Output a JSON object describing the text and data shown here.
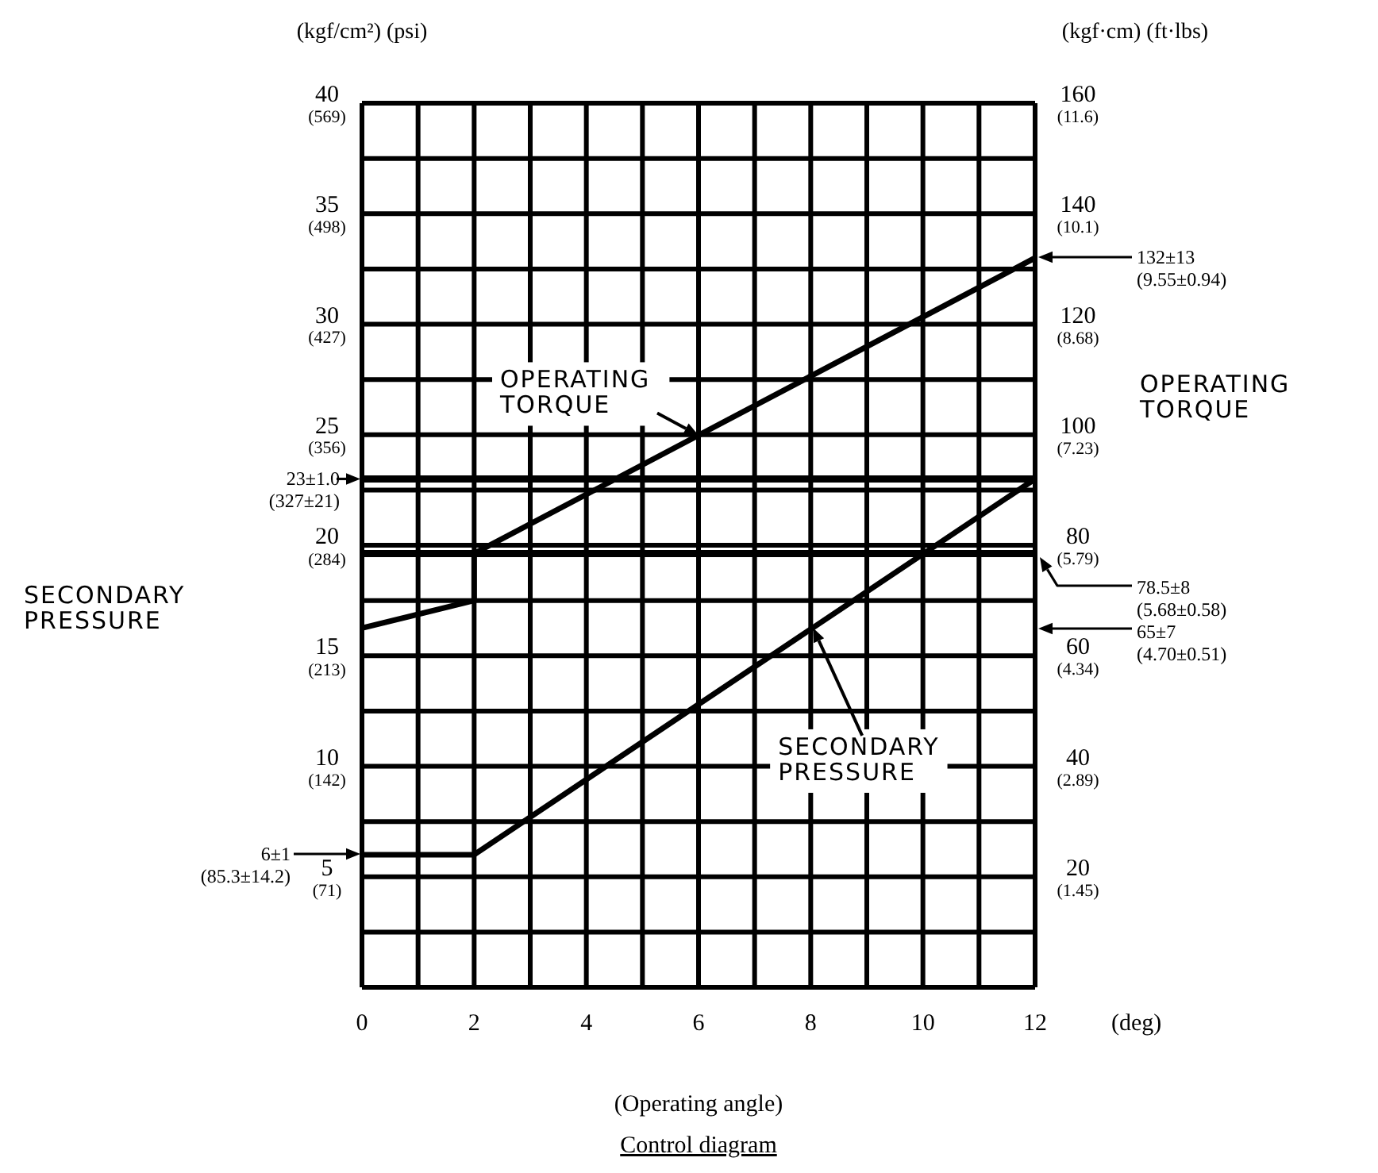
{
  "chart_data": {
    "type": "line",
    "title": "Control diagram",
    "xlabel": "(Operating angle)",
    "ylabel": "(kgf/cm²) (psi)",
    "y2label": "(kgf·cm) (ft·lbs)",
    "xlim": [
      0,
      12
    ],
    "xticks": [
      0,
      {
        "value": 1,
        "label": null
      },
      2,
      {
        "value": 3,
        "label": null
      },
      4,
      {
        "value": 5,
        "label": null
      },
      6,
      {
        "value": 7,
        "label": null
      },
      8,
      {
        "value": 9,
        "label": null
      },
      10,
      {
        "value": 11,
        "label": null
      },
      12
    ],
    "ylim": [
      0,
      40
    ],
    "yticks": [
      {
        "value": 2.5,
        "label": null
      },
      5,
      {
        "value": 7.5,
        "label": null
      },
      10,
      {
        "value": 12.5,
        "label": null
      },
      15,
      {
        "value": 17.5,
        "label": null
      },
      20,
      {
        "value": 22.5,
        "label": null
      },
      25,
      {
        "value": 27.5,
        "label": null
      },
      30,
      {
        "value": 32.5,
        "label": null
      },
      35,
      {
        "value": 37.5,
        "label": null
      },
      40
    ],
    "y3lim": [
      0,
      569
    ],
    "y3ticks": [
      {
        "value": 71,
        "label": "(71)"
      },
      {
        "value": 142,
        "label": "(142)"
      },
      {
        "value": 213,
        "label": "(213)"
      },
      {
        "value": 284,
        "label": "(284)"
      },
      {
        "value": 356,
        "label": "(356)"
      },
      {
        "value": 427,
        "label": "(427)"
      },
      {
        "value": 498,
        "label": "(498)"
      },
      {
        "value": 569,
        "label": "(569)"
      }
    ],
    "y2lim": [
      0,
      160
    ],
    "y2ticks": [
      20,
      40,
      60,
      80,
      100,
      120,
      140,
      160
    ],
    "series": [
      {
        "name": "OPERATING TORQUE",
        "color": "#000000",
        "axis": "y2",
        "x": [
          0,
          2,
          2,
          12
        ],
        "values": [
          65,
          70,
          78.5,
          132
        ]
      },
      {
        "name": "SECONDARY PRESSURE",
        "color": "#000000",
        "axis": "y",
        "x": [
          0,
          2,
          12
        ],
        "values": [
          6,
          6,
          23
        ]
      }
    ],
    "ref_lines": [
      {
        "axis": "y",
        "value": 23,
        "label": "23±1.0\n(327±21)",
        "color": "#000000"
      },
      {
        "axis": "y2",
        "value": 78.5,
        "color": "#000000"
      }
    ],
    "annotations": [
      "(1.45)",
      "(2.89)",
      "(4.34)",
      "(5.79)",
      "(7.23)",
      "(8.68)",
      "(10.1)",
      "(11.6)",
      "6±1\n(85.3±14.2)",
      "132±13\n(9.55±0.94)",
      "78.5±8\n(5.68±0.58)",
      "65±7\n(4.70±0.51)",
      "(deg)"
    ],
    "grid": true,
    "legend": false,
    "marker": "none",
    "line_style": "solid"
  }
}
